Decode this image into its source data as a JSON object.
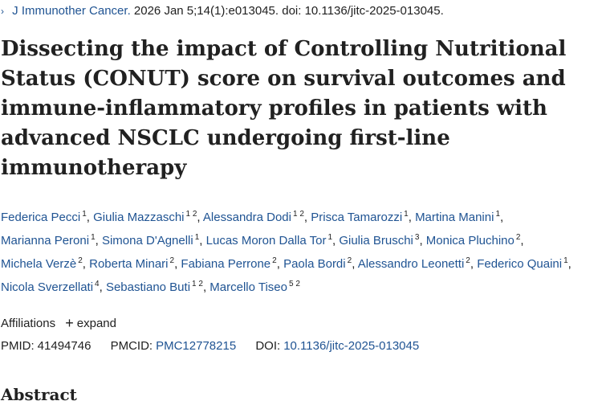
{
  "citation": {
    "journal": "J Immunother Cancer.",
    "details": "2026 Jan 5;14(1):e013045. doi: 10.1136/jitc-2025-013045."
  },
  "title": "Dissecting the impact of Controlling Nutritional Status (CONUT) score on survival outcomes and immune-inflammatory profiles in patients with advanced NSCLC undergoing first-line immunotherapy",
  "authors": [
    {
      "name": "Federica Pecci",
      "aff": "1"
    },
    {
      "name": "Giulia Mazzaschi",
      "aff": "1 2"
    },
    {
      "name": "Alessandra Dodi",
      "aff": "1 2"
    },
    {
      "name": "Prisca Tamarozzi",
      "aff": "1"
    },
    {
      "name": "Martina Manini",
      "aff": "1"
    },
    {
      "name": "Marianna Peroni",
      "aff": "1"
    },
    {
      "name": "Simona D'Agnelli",
      "aff": "1"
    },
    {
      "name": "Lucas Moron Dalla Tor",
      "aff": "1"
    },
    {
      "name": "Giulia Bruschi",
      "aff": "3"
    },
    {
      "name": "Monica Pluchino",
      "aff": "2"
    },
    {
      "name": "Michela Verzè",
      "aff": "2"
    },
    {
      "name": "Roberta Minari",
      "aff": "2"
    },
    {
      "name": "Fabiana Perrone",
      "aff": "2"
    },
    {
      "name": "Paola Bordi",
      "aff": "2"
    },
    {
      "name": "Alessandro Leonetti",
      "aff": "2"
    },
    {
      "name": "Federico Quaini",
      "aff": "1"
    },
    {
      "name": "Nicola Sverzellati",
      "aff": "4"
    },
    {
      "name": "Sebastiano Buti",
      "aff": "1 2"
    },
    {
      "name": "Marcello Tiseo",
      "aff": "5 2"
    }
  ],
  "affiliations": {
    "label": "Affiliations",
    "expand_label": "expand"
  },
  "ids": {
    "pmid_label": "PMID:",
    "pmid": "41494746",
    "pmcid_label": "PMCID:",
    "pmcid": "PMC12778215",
    "doi_label": "DOI:",
    "doi": "10.1136/jitc-2025-013045"
  },
  "abstract_heading": "Abstract",
  "colors": {
    "link": "#205493",
    "text": "#212121"
  },
  "icons": {
    "journal_arrow": "chevron-right-icon",
    "expand": "plus-icon"
  }
}
